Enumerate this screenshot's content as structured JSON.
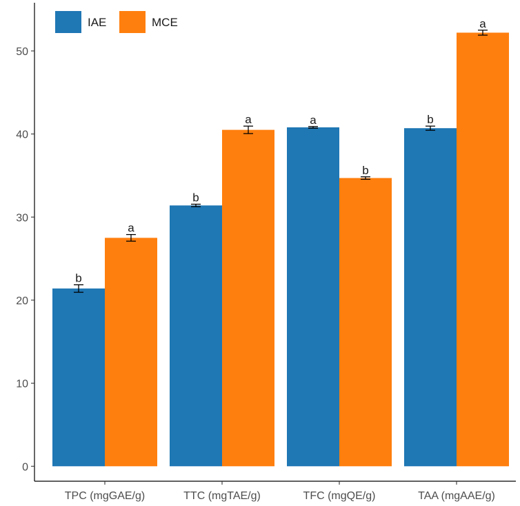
{
  "chart_data": {
    "type": "bar",
    "title": "",
    "xlabel": "",
    "ylabel": "",
    "categories": [
      "TPC (mgGAE/g)",
      "TTC (mgTAE/g)",
      "TFC (mgQE/g)",
      "TAA (mgAAE/g)"
    ],
    "series": [
      {
        "name": "IAE",
        "color": "#1f77b4",
        "values": [
          21.4,
          31.4,
          40.8,
          40.7
        ],
        "errors": [
          0.45,
          0.15,
          0.1,
          0.25
        ],
        "labels": [
          "b",
          "b",
          "a",
          "b"
        ]
      },
      {
        "name": "MCE",
        "color": "#ff7f0e",
        "values": [
          27.5,
          40.5,
          34.7,
          52.2
        ],
        "errors": [
          0.4,
          0.45,
          0.15,
          0.3
        ],
        "labels": [
          "a",
          "a",
          "b",
          "a"
        ]
      }
    ],
    "ylim": [
      -1.8,
      55.8
    ],
    "yticks": [
      0,
      10,
      20,
      30,
      40,
      50
    ],
    "grid": false,
    "legend_position": "top-left"
  }
}
